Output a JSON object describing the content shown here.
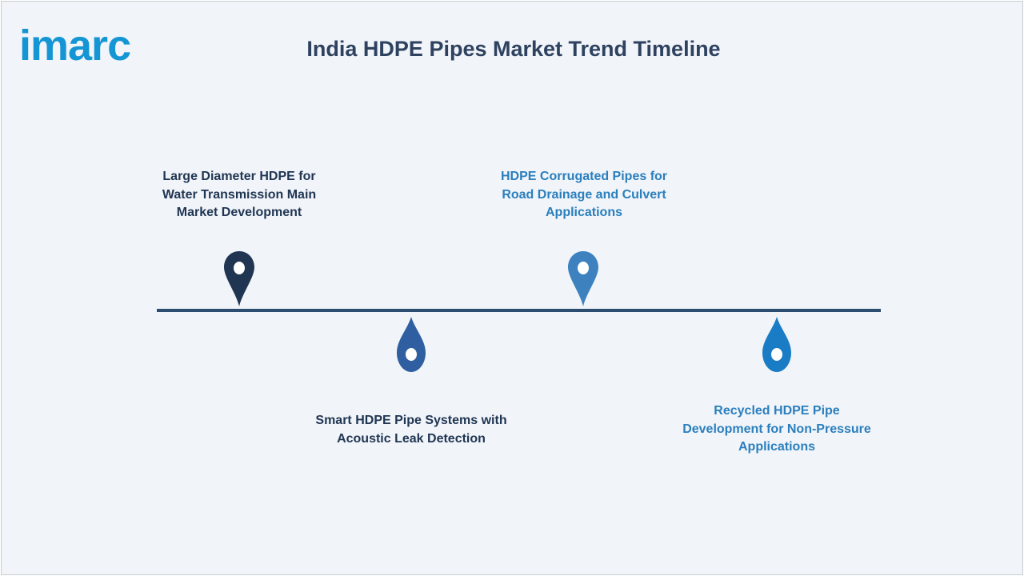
{
  "logo": {
    "text": "imarc"
  },
  "title": "India HDPE Pipes Market Trend Timeline",
  "colors": {
    "line": "#2c4d70",
    "marker_1": "#1f3552",
    "marker_2": "#2f5fa0",
    "marker_3": "#3d82bf",
    "marker_4": "#1a7cc4"
  },
  "milestones": [
    {
      "lines": [
        "Large Diameter HDPE for",
        "Water Transmission Main",
        "Market Development"
      ]
    },
    {
      "lines": [
        "Smart HDPE Pipe Systems with",
        "Acoustic Leak Detection"
      ]
    },
    {
      "lines": [
        "HDPE Corrugated Pipes for",
        "Road Drainage and Culvert",
        "Applications"
      ]
    },
    {
      "lines": [
        "Recycled HDPE Pipe",
        "Development for Non-Pressure",
        "Applications"
      ]
    }
  ]
}
